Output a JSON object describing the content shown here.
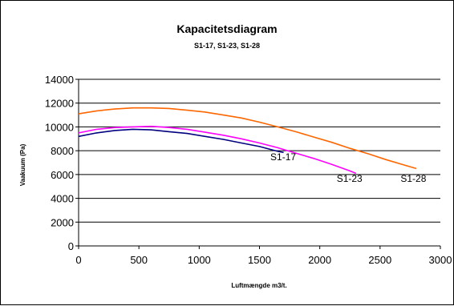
{
  "chart_data": {
    "type": "line",
    "title": "Kapacitetsdiagram",
    "subtitle": "S1-17,  S1-23,  S1-28",
    "xlabel": "Luftmængde m3/t.",
    "ylabel": "Vaakuum  (Pa)",
    "xlim": [
      0,
      3000
    ],
    "ylim": [
      0,
      14000
    ],
    "x_ticks": [
      "0",
      "500",
      "1000",
      "1500",
      "2000",
      "2500",
      "3000"
    ],
    "y_ticks": [
      "0",
      "2000",
      "4000",
      "6000",
      "8000",
      "10000",
      "12000",
      "14000"
    ],
    "grid": "horizontal",
    "legend": "none",
    "series": [
      {
        "name": "S1-17",
        "color": "#000080",
        "points": [
          [
            0,
            9200
          ],
          [
            150,
            9500
          ],
          [
            300,
            9700
          ],
          [
            450,
            9800
          ],
          [
            600,
            9750
          ],
          [
            750,
            9600
          ],
          [
            900,
            9450
          ],
          [
            1050,
            9200
          ],
          [
            1200,
            8950
          ],
          [
            1350,
            8650
          ],
          [
            1500,
            8350
          ],
          [
            1650,
            7950
          ],
          [
            1700,
            7850
          ]
        ]
      },
      {
        "name": "S1-23",
        "color": "#ff00ff",
        "points": [
          [
            0,
            9500
          ],
          [
            150,
            9800
          ],
          [
            300,
            9950
          ],
          [
            450,
            10000
          ],
          [
            600,
            10050
          ],
          [
            750,
            9950
          ],
          [
            900,
            9800
          ],
          [
            1050,
            9550
          ],
          [
            1200,
            9300
          ],
          [
            1350,
            9000
          ],
          [
            1500,
            8650
          ],
          [
            1650,
            8250
          ],
          [
            1800,
            7800
          ],
          [
            1950,
            7350
          ],
          [
            2100,
            6850
          ],
          [
            2250,
            6300
          ],
          [
            2300,
            6100
          ]
        ]
      },
      {
        "name": "S1-28",
        "color": "#ff6600",
        "points": [
          [
            0,
            11100
          ],
          [
            150,
            11350
          ],
          [
            300,
            11500
          ],
          [
            450,
            11600
          ],
          [
            600,
            11600
          ],
          [
            750,
            11550
          ],
          [
            900,
            11400
          ],
          [
            1050,
            11250
          ],
          [
            1200,
            11000
          ],
          [
            1350,
            10750
          ],
          [
            1500,
            10400
          ],
          [
            1650,
            10000
          ],
          [
            1800,
            9600
          ],
          [
            1950,
            9150
          ],
          [
            2100,
            8700
          ],
          [
            2250,
            8200
          ],
          [
            2400,
            7750
          ],
          [
            2550,
            7250
          ],
          [
            2700,
            6800
          ],
          [
            2800,
            6500
          ]
        ]
      }
    ],
    "annotations": [
      {
        "text": "S1-17",
        "x": 1590,
        "y": 7200
      },
      {
        "text": "S1-23",
        "x": 2140,
        "y": 5400
      },
      {
        "text": "S1-28",
        "x": 2670,
        "y": 5400
      }
    ]
  }
}
